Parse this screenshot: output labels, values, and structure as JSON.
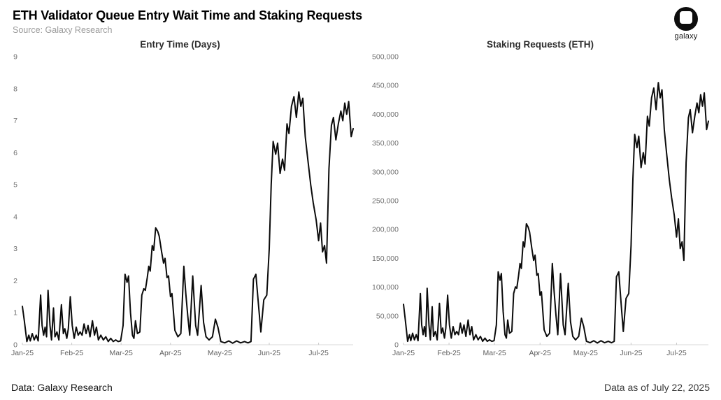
{
  "header": {
    "title": "ETH Validator Queue Entry Wait Time and Staking Requests",
    "source": "Source: Galaxy Research"
  },
  "logo": {
    "label": "galaxy"
  },
  "footer": {
    "left": "Data: Galaxy Research",
    "right": "Data as of July 22, 2025"
  },
  "chart_data": [
    {
      "type": "line",
      "title": "Entry Time (Days)",
      "xlabel": "",
      "ylabel": "",
      "line_color": "#0b0b0b",
      "xlim": [
        0,
        6.7
      ],
      "ylim": [
        0,
        9
      ],
      "grid": false,
      "x_tick_labels": [
        "Jan-25",
        "Feb-25",
        "Mar-25",
        "Apr-25",
        "May-25",
        "Jun-25",
        "Jul-25"
      ],
      "x_tick_values": [
        0,
        1,
        2,
        3,
        4,
        5,
        6
      ],
      "y_tick_labels": [
        "0",
        "1",
        "2",
        "3",
        "4",
        "5",
        "6",
        "7",
        "8",
        "9"
      ],
      "y_tick_values": [
        0,
        1,
        2,
        3,
        4,
        5,
        6,
        7,
        8,
        9
      ],
      "x": [
        0.0,
        0.04,
        0.09,
        0.13,
        0.16,
        0.2,
        0.24,
        0.28,
        0.32,
        0.37,
        0.4,
        0.43,
        0.46,
        0.49,
        0.52,
        0.56,
        0.59,
        0.63,
        0.66,
        0.7,
        0.74,
        0.79,
        0.83,
        0.86,
        0.9,
        0.93,
        0.97,
        1.01,
        1.05,
        1.09,
        1.13,
        1.17,
        1.21,
        1.25,
        1.29,
        1.33,
        1.37,
        1.42,
        1.46,
        1.5,
        1.54,
        1.59,
        1.64,
        1.69,
        1.74,
        1.79,
        1.84,
        1.89,
        1.94,
        1.99,
        2.04,
        2.08,
        2.12,
        2.15,
        2.19,
        2.23,
        2.26,
        2.29,
        2.33,
        2.38,
        2.42,
        2.46,
        2.49,
        2.53,
        2.56,
        2.59,
        2.63,
        2.66,
        2.7,
        2.74,
        2.77,
        2.82,
        2.86,
        2.89,
        2.93,
        2.96,
        3.0,
        3.03,
        3.09,
        3.15,
        3.21,
        3.27,
        3.31,
        3.35,
        3.39,
        3.45,
        3.51,
        3.55,
        3.62,
        3.67,
        3.72,
        3.78,
        3.85,
        3.91,
        3.96,
        4.02,
        4.1,
        4.18,
        4.26,
        4.34,
        4.42,
        4.5,
        4.57,
        4.63,
        4.68,
        4.73,
        4.79,
        4.83,
        4.89,
        4.95,
        5.0,
        5.04,
        5.08,
        5.13,
        5.17,
        5.22,
        5.27,
        5.31,
        5.36,
        5.4,
        5.45,
        5.5,
        5.55,
        5.6,
        5.64,
        5.68,
        5.73,
        5.78,
        5.84,
        5.89,
        5.95,
        6.0,
        6.04,
        6.08,
        6.12,
        6.16,
        6.21,
        6.26,
        6.3,
        6.35,
        6.4,
        6.45,
        6.49,
        6.53,
        6.57,
        6.61,
        6.66,
        6.7
      ],
      "y": [
        1.2,
        0.75,
        0.1,
        0.3,
        0.12,
        0.35,
        0.15,
        0.3,
        0.12,
        1.55,
        0.6,
        0.3,
        0.55,
        0.25,
        1.7,
        0.6,
        0.15,
        1.15,
        0.25,
        0.4,
        0.15,
        1.25,
        0.35,
        0.5,
        0.2,
        0.5,
        1.5,
        0.6,
        0.2,
        0.55,
        0.3,
        0.4,
        0.3,
        0.65,
        0.35,
        0.6,
        0.25,
        0.75,
        0.3,
        0.55,
        0.15,
        0.3,
        0.15,
        0.25,
        0.1,
        0.2,
        0.1,
        0.15,
        0.1,
        0.12,
        0.6,
        2.2,
        1.95,
        2.15,
        1.0,
        0.3,
        0.2,
        0.75,
        0.35,
        0.4,
        1.55,
        1.75,
        1.7,
        2.1,
        2.45,
        2.3,
        3.1,
        2.95,
        3.65,
        3.55,
        3.4,
        2.9,
        2.55,
        2.7,
        2.1,
        2.15,
        1.5,
        1.6,
        0.45,
        0.25,
        0.35,
        2.45,
        1.6,
        0.9,
        0.3,
        2.15,
        0.6,
        0.3,
        1.85,
        0.7,
        0.25,
        0.15,
        0.25,
        0.8,
        0.55,
        0.1,
        0.06,
        0.12,
        0.05,
        0.12,
        0.06,
        0.1,
        0.06,
        0.1,
        2.05,
        2.2,
        1.1,
        0.4,
        1.4,
        1.55,
        3.0,
        5.0,
        6.35,
        5.95,
        6.3,
        5.35,
        5.8,
        5.45,
        6.9,
        6.6,
        7.45,
        7.75,
        7.1,
        7.9,
        7.45,
        7.7,
        6.5,
        5.8,
        5.0,
        4.45,
        3.9,
        3.25,
        3.8,
        2.9,
        3.1,
        2.55,
        5.5,
        6.85,
        7.1,
        6.4,
        6.9,
        7.3,
        7.0,
        7.55,
        7.2,
        7.6,
        6.5,
        6.75
      ]
    },
    {
      "type": "line",
      "title": "Staking Requests (ETH)",
      "xlabel": "",
      "ylabel": "",
      "line_color": "#0b0b0b",
      "xlim": [
        0,
        6.7
      ],
      "ylim": [
        0,
        500000
      ],
      "grid": false,
      "x_tick_labels": [
        "Jan-25",
        "Feb-25",
        "Mar-25",
        "Apr-25",
        "May-25",
        "Jun-25",
        "Jul-25"
      ],
      "x_tick_values": [
        0,
        1,
        2,
        3,
        4,
        5,
        6
      ],
      "y_tick_labels": [
        "0",
        "50,000",
        "100,000",
        "150,000",
        "200,000",
        "250,000",
        "300,000",
        "350,000",
        "400,000",
        "450,000",
        "500,000"
      ],
      "y_tick_values": [
        0,
        50000,
        100000,
        150000,
        200000,
        250000,
        300000,
        350000,
        400000,
        450000,
        500000
      ],
      "x": [
        0.0,
        0.04,
        0.09,
        0.13,
        0.16,
        0.2,
        0.24,
        0.28,
        0.32,
        0.37,
        0.4,
        0.43,
        0.46,
        0.49,
        0.52,
        0.56,
        0.59,
        0.63,
        0.66,
        0.7,
        0.74,
        0.79,
        0.83,
        0.86,
        0.9,
        0.93,
        0.97,
        1.01,
        1.05,
        1.09,
        1.13,
        1.17,
        1.21,
        1.25,
        1.29,
        1.33,
        1.37,
        1.42,
        1.46,
        1.5,
        1.54,
        1.59,
        1.64,
        1.69,
        1.74,
        1.79,
        1.84,
        1.89,
        1.94,
        1.99,
        2.04,
        2.08,
        2.12,
        2.15,
        2.19,
        2.23,
        2.26,
        2.29,
        2.33,
        2.38,
        2.42,
        2.46,
        2.49,
        2.53,
        2.56,
        2.59,
        2.63,
        2.66,
        2.7,
        2.74,
        2.77,
        2.82,
        2.86,
        2.89,
        2.93,
        2.96,
        3.0,
        3.03,
        3.09,
        3.15,
        3.21,
        3.27,
        3.31,
        3.35,
        3.39,
        3.45,
        3.51,
        3.55,
        3.62,
        3.67,
        3.72,
        3.78,
        3.85,
        3.91,
        3.96,
        4.02,
        4.1,
        4.18,
        4.26,
        4.34,
        4.42,
        4.5,
        4.57,
        4.63,
        4.68,
        4.73,
        4.79,
        4.83,
        4.89,
        4.95,
        5.0,
        5.04,
        5.08,
        5.13,
        5.17,
        5.22,
        5.27,
        5.31,
        5.36,
        5.4,
        5.45,
        5.5,
        5.55,
        5.6,
        5.64,
        5.68,
        5.73,
        5.78,
        5.84,
        5.89,
        5.95,
        6.0,
        6.04,
        6.08,
        6.12,
        6.16,
        6.21,
        6.26,
        6.3,
        6.35,
        6.4,
        6.45,
        6.49,
        6.53,
        6.57,
        6.61,
        6.66,
        6.7
      ],
      "y": [
        70000,
        43000,
        6000,
        17500,
        7000,
        20000,
        8500,
        17500,
        7000,
        89000,
        34500,
        17500,
        31500,
        14500,
        98000,
        34500,
        8500,
        66000,
        14500,
        23000,
        8500,
        72000,
        20000,
        29000,
        11500,
        29000,
        86000,
        34500,
        11500,
        31500,
        17500,
        23000,
        17500,
        37500,
        20000,
        34500,
        14500,
        43000,
        17500,
        31500,
        8500,
        17500,
        8500,
        14500,
        6000,
        11500,
        6000,
        8500,
        6000,
        7000,
        34500,
        126500,
        112000,
        123500,
        57500,
        17500,
        11500,
        43000,
        20000,
        23000,
        89000,
        100500,
        98000,
        120500,
        141000,
        132500,
        178500,
        169500,
        210000,
        204000,
        195500,
        167000,
        146500,
        155500,
        120500,
        123500,
        86000,
        92000,
        26000,
        14500,
        20000,
        141000,
        92000,
        51500,
        17500,
        123500,
        34500,
        17500,
        106500,
        40000,
        14500,
        8500,
        14500,
        46000,
        31500,
        6000,
        3500,
        7000,
        3000,
        7000,
        3500,
        6000,
        3500,
        6000,
        118000,
        126500,
        63000,
        23000,
        80500,
        89000,
        172500,
        287500,
        365000,
        342000,
        362000,
        307500,
        333500,
        313500,
        396500,
        379500,
        428500,
        445500,
        408000,
        455000,
        428500,
        442500,
        373500,
        333500,
        287500,
        256000,
        224500,
        187000,
        218500,
        167000,
        178500,
        146500,
        316000,
        394000,
        408000,
        368000,
        396500,
        419500,
        402500,
        434000,
        414000,
        437000,
        373500,
        388000
      ]
    }
  ]
}
